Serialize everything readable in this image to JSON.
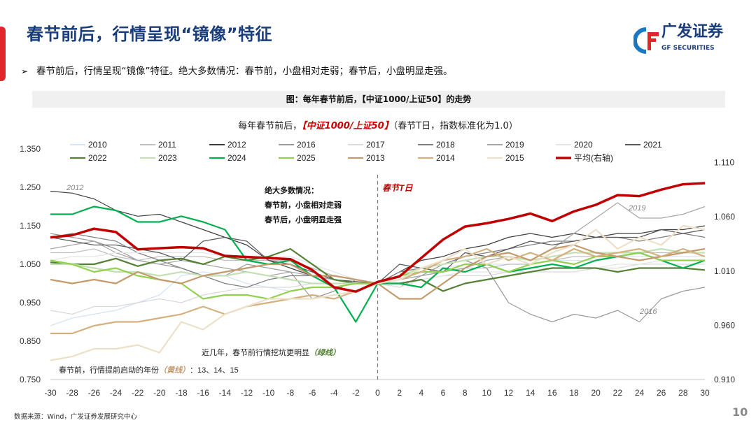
{
  "header": {
    "title": "春节前后，行情呈现“镜像”特征",
    "logo_cn": "广发证券",
    "logo_en": "GF SECURITIES"
  },
  "bullet": "春节前后，行情呈现“镜像”特征。绝大多数情况：春节前，小盘相对走弱；春节后，小盘明显走强。",
  "figure_caption": "图：每年春节前后，【中证1000/上证50】的走势",
  "source": "数据来源：Wind，广发证券发展研究中心",
  "page_number": "10",
  "chart_data": {
    "type": "line",
    "title_prefix": "每年春节前后，",
    "title_highlight": "【中证1000/上证50】",
    "title_suffix": "（春节T日，指数标准化为1.0）",
    "x": [
      -30,
      -28,
      -26,
      -24,
      -22,
      -20,
      -18,
      -16,
      -14,
      -12,
      -10,
      -8,
      -6,
      -4,
      -2,
      0,
      2,
      4,
      6,
      8,
      10,
      12,
      14,
      16,
      18,
      20,
      22,
      24,
      26,
      28,
      30
    ],
    "xlim": [
      -30,
      30
    ],
    "x_ticks": [
      "-30",
      "-28",
      "-26",
      "-24",
      "-22",
      "-20",
      "-18",
      "-16",
      "-14",
      "-12",
      "-10",
      "-8",
      "-6",
      "-4",
      "-2",
      "0",
      "2",
      "4",
      "6",
      "8",
      "10",
      "12",
      "14",
      "16",
      "18",
      "20",
      "22",
      "24",
      "26",
      "28",
      "30"
    ],
    "y_left": {
      "lim": [
        0.75,
        1.35
      ],
      "ticks": [
        "0.750",
        "0.850",
        "0.950",
        "1.050",
        "1.150",
        "1.250",
        "1.350"
      ]
    },
    "y_right": {
      "lim": [
        0.91,
        1.11
      ],
      "ticks": [
        "0.910",
        "0.960",
        "1.010",
        "1.060",
        "1.110"
      ]
    },
    "legend_position": "top",
    "series": [
      {
        "name": "2010",
        "color": "#d6e2f5",
        "width": 1.2,
        "axis": "left",
        "values": [
          0.89,
          0.91,
          0.92,
          0.93,
          0.95,
          0.97,
          1.02,
          1.03,
          1.02,
          1.0,
          0.99,
          0.98,
          0.99,
          0.99,
          1.0,
          1.0,
          1.03,
          1.04,
          1.04,
          1.05,
          1.05,
          1.05,
          1.05,
          1.06,
          1.06,
          1.06,
          1.07,
          1.07,
          1.07,
          1.07,
          1.07
        ]
      },
      {
        "name": "2011",
        "color": "#bfbfbf",
        "width": 1.2,
        "axis": "left",
        "values": [
          1.08,
          1.08,
          1.09,
          1.07,
          1.06,
          1.07,
          1.07,
          1.07,
          1.06,
          1.06,
          1.06,
          1.06,
          1.04,
          1.02,
          1.01,
          1.0,
          1.01,
          1.02,
          1.03,
          1.04,
          1.04,
          1.05,
          1.05,
          1.06,
          1.07,
          1.07,
          1.07,
          1.08,
          1.08,
          1.08,
          1.08
        ]
      },
      {
        "name": "2012",
        "color": "#404040",
        "width": 1.2,
        "axis": "left",
        "values": [
          1.24,
          1.235,
          1.22,
          1.19,
          1.175,
          1.18,
          1.16,
          1.14,
          1.12,
          1.1,
          1.06,
          1.04,
          1.02,
          1.01,
          1.005,
          1.0,
          1.03,
          1.06,
          1.07,
          1.09,
          1.1,
          1.12,
          1.13,
          1.12,
          1.13,
          1.12,
          1.13,
          1.13,
          1.14,
          1.14,
          1.15
        ]
      },
      {
        "name": "2016",
        "color": "#9a9a9a",
        "width": 1.2,
        "axis": "left",
        "values": [
          1.13,
          1.12,
          1.11,
          1.09,
          1.06,
          1.05,
          1.04,
          1.02,
          1.02,
          1.05,
          1.04,
          1.03,
          0.96,
          0.98,
          1.01,
          1.0,
          0.99,
          1.02,
          1.05,
          1.06,
          1.04,
          0.95,
          0.92,
          0.9,
          0.92,
          0.91,
          0.93,
          0.9,
          0.96,
          0.98,
          0.99
        ]
      },
      {
        "name": "2017",
        "color": "#d9d9d9",
        "width": 1.2,
        "axis": "left",
        "values": [
          0.93,
          0.92,
          0.94,
          0.94,
          0.95,
          0.96,
          0.95,
          0.97,
          0.98,
          0.99,
          0.99,
          0.99,
          1.0,
          1.0,
          1.0,
          1.0,
          0.99,
          1.01,
          1.02,
          1.02,
          1.02,
          1.03,
          1.03,
          1.03,
          1.03,
          1.04,
          1.04,
          1.05,
          1.05,
          1.05,
          1.05
        ]
      },
      {
        "name": "2018",
        "color": "#7f7f7f",
        "width": 1.2,
        "axis": "left",
        "values": [
          1.12,
          1.13,
          1.12,
          1.11,
          1.08,
          1.06,
          1.04,
          1.02,
          1.0,
          0.99,
          1.01,
          1.02,
          1.02,
          1.01,
          1.0,
          1.0,
          1.03,
          1.04,
          1.05,
          1.07,
          1.08,
          1.09,
          1.1,
          1.11,
          1.11,
          1.12,
          1.12,
          1.11,
          1.12,
          1.13,
          1.12
        ]
      },
      {
        "name": "2019",
        "color": "#a6a6a6",
        "width": 1.2,
        "axis": "left",
        "values": [
          1.09,
          1.1,
          1.11,
          1.08,
          1.06,
          1.05,
          1.06,
          1.05,
          1.04,
          1.03,
          1.02,
          1.03,
          1.02,
          1.01,
          1.0,
          1.0,
          1.01,
          1.02,
          1.03,
          1.04,
          1.06,
          1.07,
          1.06,
          1.09,
          1.13,
          1.17,
          1.21,
          1.17,
          1.17,
          1.18,
          1.2
        ]
      },
      {
        "name": "2020",
        "color": "#e4e4e4",
        "width": 1.2,
        "axis": "left",
        "values": [
          1.06,
          1.07,
          1.07,
          1.08,
          1.08,
          1.08,
          1.08,
          1.08,
          1.07,
          1.07,
          1.07,
          1.07,
          1.05,
          1.03,
          1.01,
          1.0,
          0.99,
          1.01,
          1.02,
          1.03,
          1.03,
          1.03,
          1.04,
          1.04,
          1.04,
          1.04,
          1.05,
          1.05,
          1.06,
          1.06,
          1.06
        ]
      },
      {
        "name": "2021",
        "color": "#595959",
        "width": 1.2,
        "axis": "left",
        "values": [
          1.12,
          1.11,
          1.1,
          1.1,
          1.09,
          1.08,
          1.06,
          1.11,
          1.12,
          1.11,
          1.06,
          1.05,
          1.03,
          1.01,
          1.0,
          1.0,
          1.05,
          1.04,
          1.03,
          1.08,
          1.07,
          1.09,
          1.11,
          1.1,
          1.11,
          1.12,
          1.12,
          1.12,
          1.14,
          1.13,
          1.14
        ]
      },
      {
        "name": "2022",
        "color": "#548235",
        "width": 2.2,
        "axis": "left",
        "values": [
          1.055,
          1.05,
          1.05,
          1.065,
          1.045,
          1.06,
          1.065,
          1.05,
          1.07,
          1.06,
          1.07,
          1.09,
          1.05,
          1.01,
          1.0,
          1.0,
          1.0,
          1.01,
          0.98,
          1.0,
          1.01,
          1.02,
          1.03,
          1.04,
          1.04,
          1.04,
          1.03,
          1.04,
          1.04,
          1.04,
          1.035
        ]
      },
      {
        "name": "2023",
        "color": "#c5e0b4",
        "width": 2.2,
        "axis": "left",
        "values": [
          1.05,
          1.05,
          1.04,
          1.03,
          1.03,
          1.02,
          1.03,
          1.02,
          1.02,
          1.03,
          1.02,
          1.01,
          1.0,
          1.0,
          1.0,
          1.0,
          1.02,
          1.04,
          1.05,
          1.06,
          1.07,
          1.07,
          1.06,
          1.07,
          1.08,
          1.08,
          1.08,
          1.08,
          1.09,
          1.08,
          1.08
        ]
      },
      {
        "name": "2024",
        "color": "#00b050",
        "width": 2.2,
        "axis": "left",
        "values": [
          1.18,
          1.18,
          1.2,
          1.19,
          1.16,
          1.16,
          1.175,
          1.16,
          1.14,
          1.06,
          1.05,
          1.06,
          1.02,
          0.99,
          0.9,
          1.0,
          1.0,
          0.99,
          1.04,
          1.03,
          1.05,
          1.03,
          1.04,
          1.05,
          1.04,
          1.06,
          1.07,
          1.08,
          1.06,
          1.04,
          1.06
        ]
      },
      {
        "name": "2025",
        "color": "#92d050",
        "width": 2.2,
        "axis": "left",
        "values": [
          1.06,
          1.05,
          1.03,
          1.04,
          1.02,
          1.01,
          1.0,
          0.96,
          0.97,
          0.97,
          0.96,
          0.98,
          0.99,
          0.99,
          1.0,
          1.0,
          1.02,
          1.03,
          1.03,
          1.05,
          1.05,
          1.03,
          1.05,
          1.06,
          1.05,
          1.07,
          1.07,
          1.08,
          1.06,
          1.06,
          1.06
        ]
      },
      {
        "name": "2013",
        "color": "#c49a6c",
        "width": 2.2,
        "axis": "left",
        "values": [
          1.01,
          1.0,
          1.01,
          1.0,
          1.03,
          1.01,
          1.0,
          1.02,
          1.03,
          1.04,
          1.05,
          1.05,
          1.02,
          1.02,
          1.01,
          1.0,
          0.96,
          0.96,
          1.0,
          1.04,
          1.07,
          1.08,
          1.06,
          1.09,
          1.1,
          1.08,
          1.07,
          1.06,
          1.07,
          1.08,
          1.09
        ]
      },
      {
        "name": "2014",
        "color": "#d4b07f",
        "width": 2.2,
        "axis": "left",
        "values": [
          0.87,
          0.87,
          0.89,
          0.9,
          0.9,
          0.91,
          0.92,
          0.94,
          0.92,
          0.94,
          0.95,
          0.96,
          0.97,
          0.96,
          0.98,
          1.0,
          1.01,
          1.03,
          1.06,
          1.07,
          1.09,
          1.06,
          1.08,
          1.06,
          1.09,
          1.07,
          1.08,
          1.09,
          1.07,
          1.09,
          1.07
        ]
      },
      {
        "name": "2015",
        "color": "#ede0c8",
        "width": 2.2,
        "axis": "left",
        "values": [
          0.8,
          0.81,
          0.83,
          0.83,
          0.84,
          0.82,
          0.9,
          0.88,
          0.92,
          0.94,
          0.96,
          0.96,
          0.96,
          0.97,
          0.98,
          1.0,
          1.01,
          1.04,
          1.06,
          1.09,
          1.05,
          1.07,
          1.05,
          1.08,
          1.1,
          1.14,
          1.09,
          1.12,
          1.1,
          1.15,
          1.14
        ]
      },
      {
        "name": "平均(右轴)",
        "color": "#c00000",
        "width": 3.5,
        "axis": "right",
        "values": [
          1.041,
          1.043,
          1.049,
          1.046,
          1.03,
          1.031,
          1.032,
          1.031,
          1.024,
          1.023,
          1.022,
          1.021,
          1.011,
          0.995,
          0.991,
          1.0,
          1.005,
          1.022,
          1.039,
          1.051,
          1.054,
          1.058,
          1.063,
          1.056,
          1.065,
          1.071,
          1.08,
          1.079,
          1.085,
          1.09,
          1.091
        ]
      }
    ],
    "annotations": {
      "label_2012": "2012",
      "label_2019": "2019",
      "label_2016": "2016",
      "t_day": "春节T日",
      "majority_1": "绝大多数情况：",
      "majority_2": "春节前，小盘相对走弱",
      "majority_3": "春节后，小盘明显走强",
      "green_note": "近几年，春节前行情挖坑更明显",
      "green_tag": "（绿线）",
      "yellow_note_a": "春节前，行情提前启动的年份",
      "yellow_tag": "（黄线）",
      "yellow_note_b": "：13、14、15"
    }
  }
}
